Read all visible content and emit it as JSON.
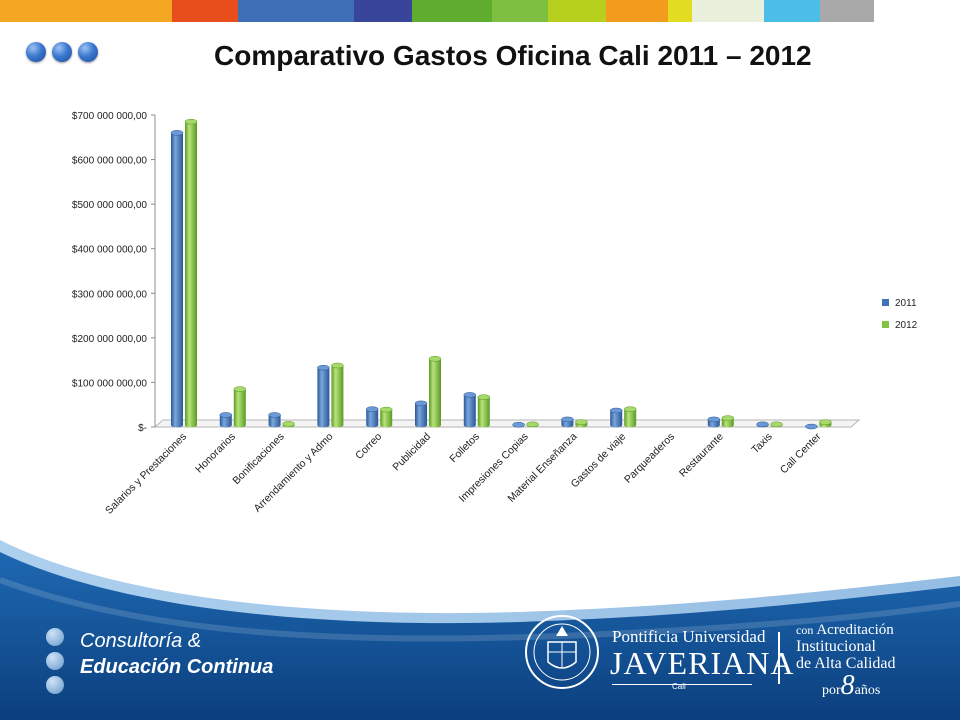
{
  "top_bar_colors": [
    "#f5a623",
    "#e84e1b",
    "#3e6fb6",
    "#38459a",
    "#5fad2f",
    "#7fbf3f",
    "#b7cf1d",
    "#f29b1d",
    "#e2dd21",
    "#e9f1dd",
    "#4cbde9",
    "#a9a9a9"
  ],
  "title": "Comparativo Gastos Oficina Cali 2011 – 2012",
  "chart_data": {
    "type": "bar",
    "style": "3d-cylinder",
    "categories": [
      "Salarios y Prestaciones",
      "Honorarios",
      "Bonificaciones",
      "Arrendamiento y Admo",
      "Correo",
      "Publicidad",
      "Folletos",
      "Impresiones Copias",
      "Material Enseñanza",
      "Gastos de viaje",
      "Parqueaderos",
      "Restaurante",
      "Taxis",
      "Call Center"
    ],
    "series": [
      {
        "name": "2011",
        "color": "#3f72b6",
        "values": [
          660000000,
          27000000,
          27000000,
          133000000,
          40000000,
          53000000,
          72000000,
          5000000,
          17000000,
          37000000,
          0,
          17000000,
          6000000,
          1000000
        ]
      },
      {
        "name": "2012",
        "color": "#82c341",
        "values": [
          685000000,
          85000000,
          7000000,
          138000000,
          39000000,
          153000000,
          67000000,
          6000000,
          11000000,
          40000000,
          0,
          20000000,
          6000000,
          11000000
        ]
      }
    ],
    "yticks": [
      "$-",
      "$100 000 000,00",
      "$200 000 000,00",
      "$300 000 000,00",
      "$400 000 000,00",
      "$500 000 000,00",
      "$600 000 000,00",
      "$700 000 000,00"
    ],
    "ylim": [
      0,
      700000000
    ],
    "grid": false,
    "legend_position": "right"
  },
  "footer": {
    "brand_line1": "Consultoría &",
    "brand_line2": "Educación Continua",
    "university_line1": "Pontificia Universidad",
    "university_line2": "JAVERIANA",
    "university_line3": "Cali",
    "accreditation_line1a": "con",
    "accreditation_line1b": "Acreditación",
    "accreditation_line2": "Institucional",
    "accreditation_line3": "de Alta Calidad",
    "accreditation_line4a": "por",
    "accreditation_line4b": "8",
    "accreditation_line4c": "años"
  }
}
